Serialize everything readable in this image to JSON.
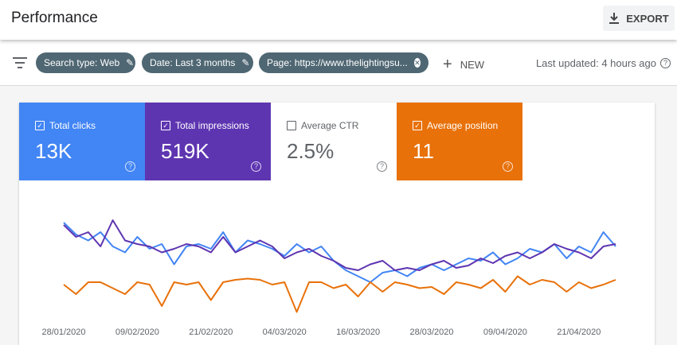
{
  "header": {
    "title": "Performance",
    "export": "EXPORT"
  },
  "filters": {
    "chips": [
      "Search type: Web",
      "Date: Last 3 months",
      "Page: https://www.thelightingsu..."
    ],
    "new": "NEW",
    "last_updated": "Last updated: 4 hours ago"
  },
  "cards": [
    {
      "label": "Total clicks",
      "value": "13K",
      "checked": true,
      "color": "#4285f4"
    },
    {
      "label": "Total impressions",
      "value": "519K",
      "checked": true,
      "color": "#5e35b1"
    },
    {
      "label": "Average CTR",
      "value": "2.5%",
      "checked": false,
      "color": "#ffffff"
    },
    {
      "label": "Average position",
      "value": "11",
      "checked": true,
      "color": "#e8710a"
    }
  ],
  "chart_data": {
    "type": "line",
    "x": [
      "28/01/2020",
      "30/01/2020",
      "01/02/2020",
      "03/02/2020",
      "05/02/2020",
      "07/02/2020",
      "09/02/2020",
      "11/02/2020",
      "13/02/2020",
      "15/02/2020",
      "17/02/2020",
      "19/02/2020",
      "21/02/2020",
      "23/02/2020",
      "25/02/2020",
      "27/02/2020",
      "29/02/2020",
      "02/03/2020",
      "04/03/2020",
      "06/03/2020",
      "08/03/2020",
      "10/03/2020",
      "12/03/2020",
      "14/03/2020",
      "16/03/2020",
      "18/03/2020",
      "20/03/2020",
      "22/03/2020",
      "24/03/2020",
      "26/03/2020",
      "28/03/2020",
      "30/03/2020",
      "01/04/2020",
      "03/04/2020",
      "05/04/2020",
      "07/04/2020",
      "09/04/2020",
      "11/04/2020",
      "13/04/2020",
      "15/04/2020",
      "17/04/2020",
      "19/04/2020",
      "21/04/2020",
      "23/04/2020",
      "25/04/2020",
      "27/04/2020"
    ],
    "xticks": [
      "28/01/2020",
      "09/02/2020",
      "21/02/2020",
      "04/03/2020",
      "16/03/2020",
      "28/03/2020",
      "09/04/2020",
      "21/04/2020"
    ],
    "ylim": [
      0,
      100
    ],
    "series": [
      {
        "color": "#4285f4",
        "values": [
          80,
          70,
          65,
          72,
          60,
          55,
          68,
          58,
          62,
          45,
          60,
          62,
          58,
          72,
          55,
          65,
          62,
          58,
          52,
          62,
          55,
          60,
          48,
          40,
          35,
          30,
          38,
          40,
          35,
          42,
          45,
          40,
          45,
          50,
          48,
          55,
          45,
          50,
          58,
          55,
          62,
          50,
          60,
          55,
          72,
          60
        ]
      },
      {
        "color": "#5e35b1",
        "values": [
          78,
          68,
          72,
          60,
          82,
          65,
          62,
          60,
          55,
          58,
          62,
          60,
          55,
          68,
          55,
          60,
          65,
          60,
          50,
          55,
          58,
          52,
          48,
          42,
          40,
          45,
          48,
          40,
          42,
          40,
          45,
          48,
          42,
          44,
          50,
          46,
          52,
          55,
          50,
          55,
          62,
          58,
          55,
          50,
          60,
          62
        ]
      },
      {
        "color": "#e8710a",
        "values": [
          28,
          20,
          30,
          30,
          25,
          20,
          30,
          28,
          10,
          30,
          28,
          30,
          15,
          30,
          32,
          33,
          32,
          28,
          30,
          5,
          30,
          30,
          25,
          28,
          18,
          30,
          22,
          30,
          28,
          25,
          26,
          20,
          30,
          28,
          25,
          32,
          22,
          35,
          28,
          32,
          30,
          22,
          30,
          25,
          28,
          32
        ]
      }
    ]
  }
}
